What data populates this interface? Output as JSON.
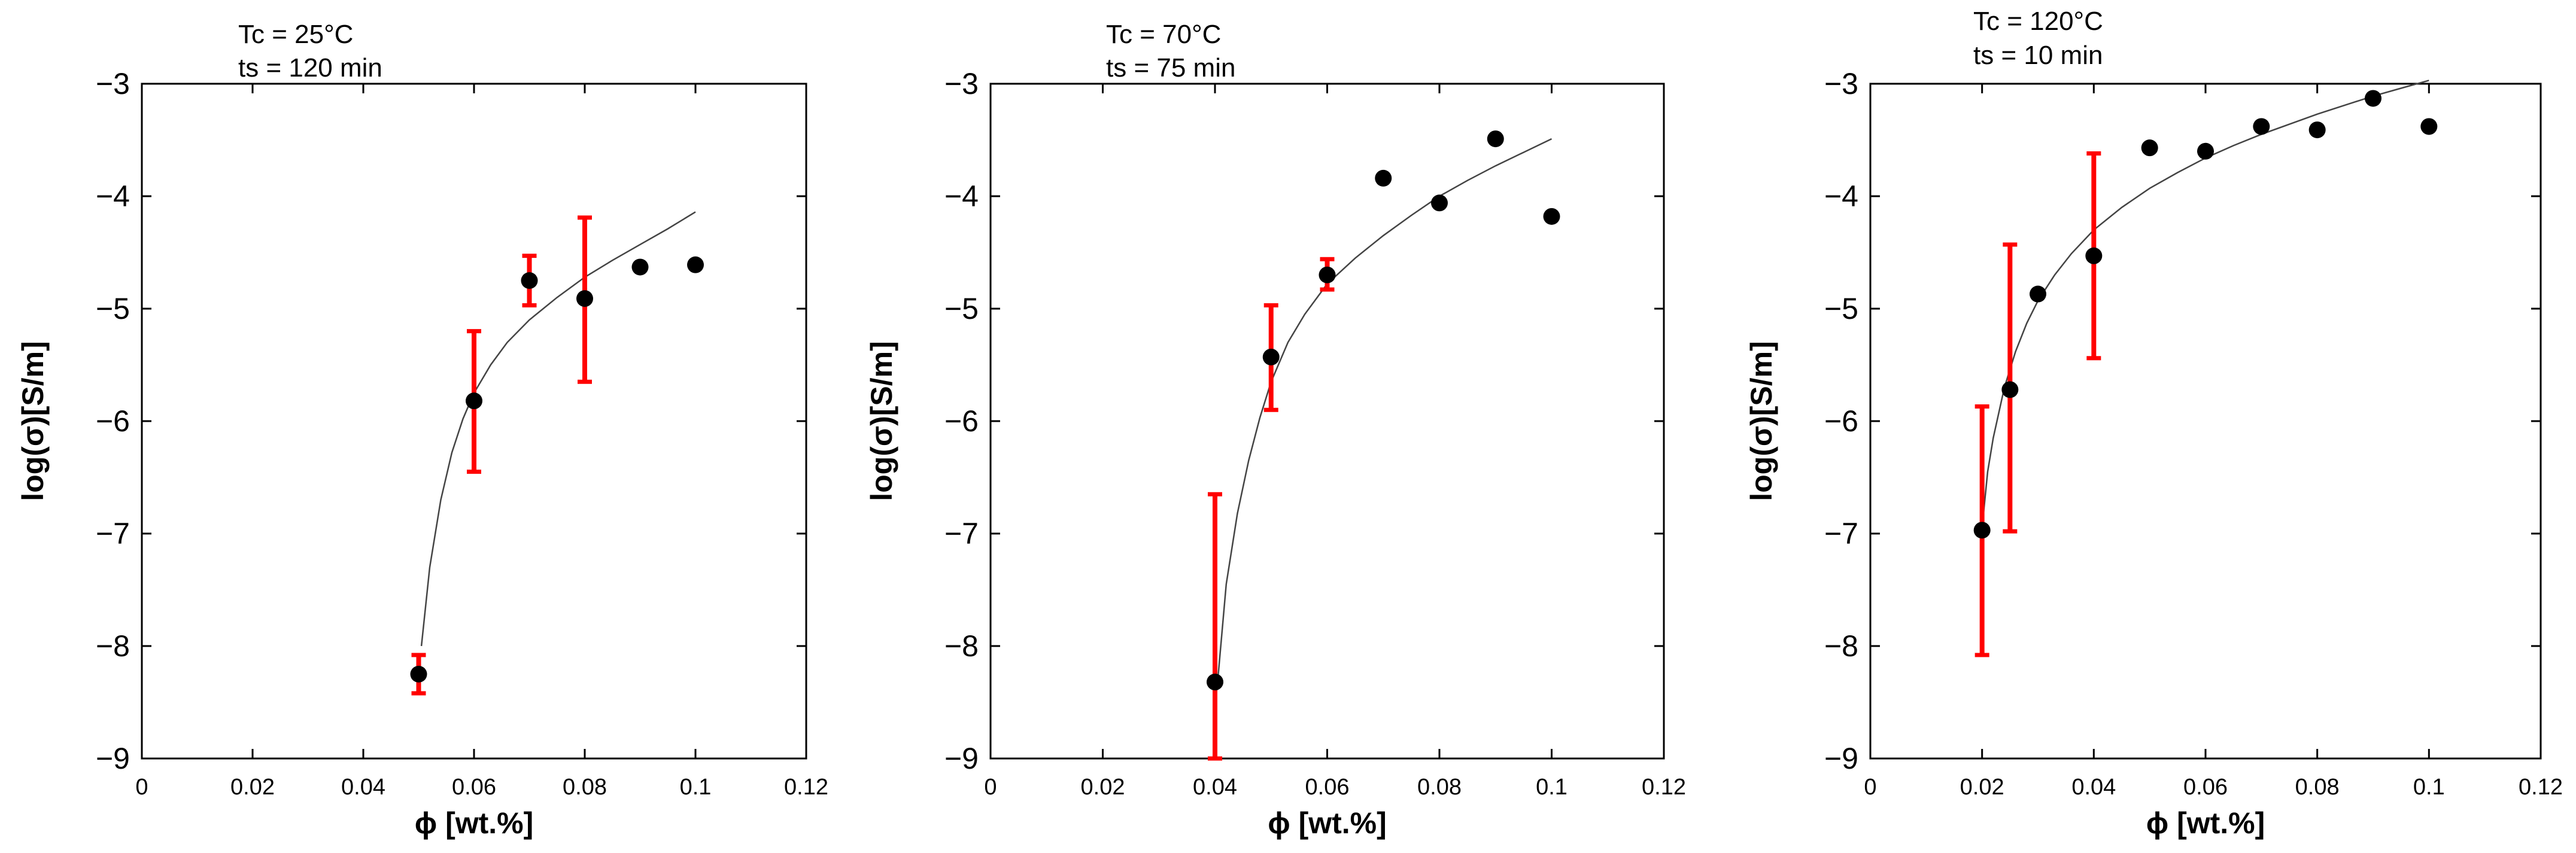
{
  "chart_data": [
    {
      "type": "scatter",
      "annotation": [
        "Tc = 25°C",
        "ts = 120 min"
      ],
      "xlabel": "ϕ [wt.%]",
      "ylabel": "log(σ)[S/m]",
      "xlim": [
        0,
        0.12
      ],
      "ylim": [
        -9,
        -3
      ],
      "xticks": [
        0,
        0.02,
        0.04,
        0.06,
        0.08,
        0.1,
        0.12
      ],
      "xtick_labels": [
        "0",
        "0.02",
        "0.04",
        "0.06",
        "0.08",
        "0.1",
        "0.12"
      ],
      "yticks": [
        -3,
        -4,
        -5,
        -6,
        -7,
        -8,
        -9
      ],
      "ytick_labels": [
        "−3",
        "−4",
        "−5",
        "−6",
        "−7",
        "−8",
        "−9"
      ],
      "points": [
        {
          "x": 0.05,
          "y": -8.25,
          "err_low": -8.42,
          "err_high": -8.08
        },
        {
          "x": 0.06,
          "y": -5.82,
          "err_low": -6.45,
          "err_high": -5.2
        },
        {
          "x": 0.07,
          "y": -4.75,
          "err_low": -4.97,
          "err_high": -4.53
        },
        {
          "x": 0.08,
          "y": -4.91,
          "err_low": -5.65,
          "err_high": -4.19
        },
        {
          "x": 0.09,
          "y": -4.63
        },
        {
          "x": 0.1,
          "y": -4.61
        }
      ],
      "fit": {
        "x": [
          0.0505,
          0.052,
          0.054,
          0.056,
          0.058,
          0.06,
          0.063,
          0.066,
          0.07,
          0.075,
          0.08,
          0.085,
          0.09,
          0.095,
          0.1
        ],
        "y": [
          -8.0,
          -7.3,
          -6.7,
          -6.28,
          -5.98,
          -5.75,
          -5.5,
          -5.3,
          -5.1,
          -4.9,
          -4.72,
          -4.57,
          -4.43,
          -4.29,
          -4.14
        ]
      }
    },
    {
      "type": "scatter",
      "annotation": [
        "Tc = 70°C",
        "ts = 75 min"
      ],
      "xlabel": "ϕ [wt.%]",
      "ylabel": "log(σ)[S/m]",
      "xlim": [
        0,
        0.12
      ],
      "ylim": [
        -9,
        -3
      ],
      "xticks": [
        0,
        0.02,
        0.04,
        0.06,
        0.08,
        0.1,
        0.12
      ],
      "xtick_labels": [
        "0",
        "0.02",
        "0.04",
        "0.06",
        "0.08",
        "0.1",
        "0.12"
      ],
      "yticks": [
        -3,
        -4,
        -5,
        -6,
        -7,
        -8,
        -9
      ],
      "ytick_labels": [
        "−3",
        "−4",
        "−5",
        "−6",
        "−7",
        "−8",
        "−9"
      ],
      "points": [
        {
          "x": 0.04,
          "y": -8.32,
          "err_low": -9.0,
          "err_high": -6.65
        },
        {
          "x": 0.05,
          "y": -5.43,
          "err_low": -5.9,
          "err_high": -4.97
        },
        {
          "x": 0.06,
          "y": -4.7,
          "err_low": -4.83,
          "err_high": -4.56
        },
        {
          "x": 0.07,
          "y": -3.84
        },
        {
          "x": 0.08,
          "y": -4.06
        },
        {
          "x": 0.09,
          "y": -3.49
        },
        {
          "x": 0.1,
          "y": -4.18
        }
      ],
      "fit": {
        "x": [
          0.0405,
          0.042,
          0.044,
          0.046,
          0.048,
          0.05,
          0.053,
          0.056,
          0.06,
          0.065,
          0.07,
          0.075,
          0.08,
          0.085,
          0.09,
          0.095,
          0.1
        ],
        "y": [
          -8.3,
          -7.45,
          -6.82,
          -6.35,
          -5.97,
          -5.65,
          -5.3,
          -5.05,
          -4.78,
          -4.55,
          -4.35,
          -4.17,
          -4.0,
          -3.86,
          -3.73,
          -3.61,
          -3.49
        ]
      }
    },
    {
      "type": "scatter",
      "annotation": [
        "Tc = 120°C",
        "ts = 10 min"
      ],
      "xlabel": "ϕ [wt.%]",
      "ylabel": "log(σ)[S/m]",
      "xlim": [
        0,
        0.12
      ],
      "ylim": [
        -9,
        -3
      ],
      "xticks": [
        0,
        0.02,
        0.04,
        0.06,
        0.08,
        0.1,
        0.12
      ],
      "xtick_labels": [
        "0",
        "0.02",
        "0.04",
        "0.06",
        "0.08",
        "0.1",
        "0.12"
      ],
      "yticks": [
        -3,
        -4,
        -5,
        -6,
        -7,
        -8,
        -9
      ],
      "ytick_labels": [
        "−3",
        "−4",
        "−5",
        "−6",
        "−7",
        "−8",
        "−9"
      ],
      "points": [
        {
          "x": 0.02,
          "y": -6.97,
          "err_low": -8.08,
          "err_high": -5.87
        },
        {
          "x": 0.025,
          "y": -5.72,
          "err_low": -6.98,
          "err_high": -4.43
        },
        {
          "x": 0.03,
          "y": -4.87
        },
        {
          "x": 0.04,
          "y": -4.53,
          "err_low": -5.44,
          "err_high": -3.62
        },
        {
          "x": 0.05,
          "y": -3.57
        },
        {
          "x": 0.06,
          "y": -3.6
        },
        {
          "x": 0.07,
          "y": -3.38
        },
        {
          "x": 0.08,
          "y": -3.41
        },
        {
          "x": 0.09,
          "y": -3.13
        },
        {
          "x": 0.1,
          "y": -3.38
        }
      ],
      "fit": {
        "x": [
          0.0202,
          0.021,
          0.022,
          0.024,
          0.026,
          0.028,
          0.03,
          0.033,
          0.036,
          0.04,
          0.045,
          0.05,
          0.055,
          0.06,
          0.065,
          0.07,
          0.075,
          0.08,
          0.085,
          0.09,
          0.095,
          0.1
        ],
        "y": [
          -6.85,
          -6.45,
          -6.15,
          -5.7,
          -5.38,
          -5.13,
          -4.93,
          -4.7,
          -4.51,
          -4.3,
          -4.1,
          -3.93,
          -3.79,
          -3.66,
          -3.55,
          -3.45,
          -3.36,
          -3.27,
          -3.19,
          -3.11,
          -3.04,
          -2.97
        ]
      }
    }
  ]
}
